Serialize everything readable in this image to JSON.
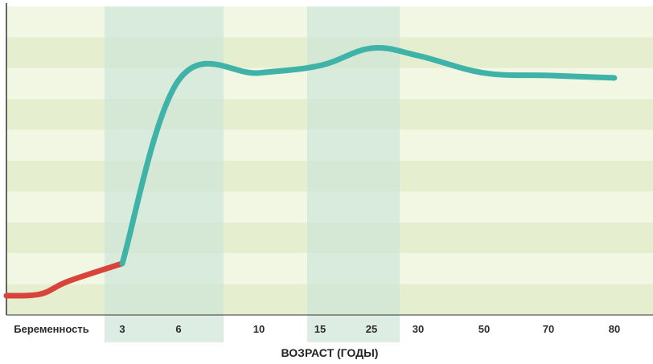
{
  "chart_data": {
    "type": "line",
    "title": "",
    "xlabel": "ВОЗРАСТ (ГОДЫ)",
    "ylabel": "",
    "categories": [
      "Беременность",
      "3",
      "6",
      "10",
      "15",
      "25",
      "30",
      "50",
      "70",
      "80"
    ],
    "highlight_bands": [
      {
        "from": "3",
        "to": "6"
      },
      {
        "from": "15",
        "to": "25"
      }
    ],
    "ylim": [
      0,
      100
    ],
    "grid": "horizontal stripes",
    "series": [
      {
        "segment": "prenatal",
        "color": "#d8433a",
        "points": [
          {
            "x": "Беременность",
            "y": 0
          },
          {
            "x": "3",
            "y": 13
          }
        ]
      },
      {
        "segment": "postnatal",
        "color": "#3fb3a8",
        "points": [
          {
            "x": "3",
            "y": 13
          },
          {
            "x": "6",
            "y": 87
          },
          {
            "x": "10",
            "y": 90
          },
          {
            "x": "15",
            "y": 93
          },
          {
            "x": "25",
            "y": 100
          },
          {
            "x": "30",
            "y": 97
          },
          {
            "x": "50",
            "y": 90
          },
          {
            "x": "70",
            "y": 89
          },
          {
            "x": "80",
            "y": 88
          }
        ]
      }
    ],
    "colors": {
      "stripe_light": "#f2f7e4",
      "stripe_dark": "#e5efcf",
      "band": "#cfe6d8",
      "axis": "#333333"
    }
  }
}
